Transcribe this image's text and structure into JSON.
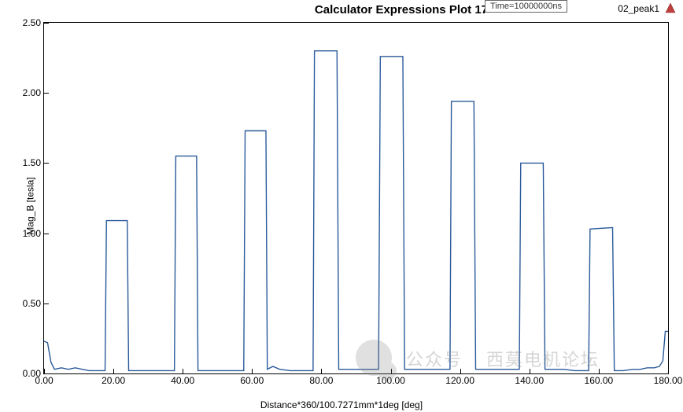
{
  "title": "Calculator Expressions Plot 17",
  "time_box": "Time=10000000ns",
  "legend": {
    "label": "02_peak1",
    "marker_color": "#c04040"
  },
  "ylabel": "Mag_B [tesla]",
  "xlabel": "Distance*360/100.7271mm*1deg [deg]",
  "chart": {
    "type": "line",
    "line_color": "#2a5a9a",
    "line_width": 1.4,
    "background_color": "#ffffff",
    "xlim": [
      0,
      180
    ],
    "ylim": [
      0,
      2.5
    ],
    "xticks": [
      0,
      20,
      40,
      60,
      80,
      100,
      120,
      140,
      160,
      180
    ],
    "xtick_labels": [
      "0.00",
      "20.00",
      "40.00",
      "60.00",
      "80.00",
      "100.00",
      "120.00",
      "140.00",
      "160.00",
      "180.00"
    ],
    "yticks": [
      0,
      0.5,
      1.0,
      1.5,
      2.0,
      2.5
    ],
    "ytick_labels": [
      "0.00",
      "0.50",
      "1.00",
      "1.50",
      "2.00",
      "2.50"
    ],
    "series": [
      {
        "x": 0.0,
        "y": 0.23
      },
      {
        "x": 1.0,
        "y": 0.22
      },
      {
        "x": 2.0,
        "y": 0.08
      },
      {
        "x": 3.0,
        "y": 0.03
      },
      {
        "x": 5.0,
        "y": 0.04
      },
      {
        "x": 7.0,
        "y": 0.03
      },
      {
        "x": 9.0,
        "y": 0.04
      },
      {
        "x": 11.0,
        "y": 0.03
      },
      {
        "x": 13.0,
        "y": 0.02
      },
      {
        "x": 15.0,
        "y": 0.02
      },
      {
        "x": 17.0,
        "y": 0.02
      },
      {
        "x": 17.6,
        "y": 0.02
      },
      {
        "x": 18.0,
        "y": 1.09
      },
      {
        "x": 24.0,
        "y": 1.09
      },
      {
        "x": 24.4,
        "y": 0.02
      },
      {
        "x": 27.0,
        "y": 0.02
      },
      {
        "x": 30.0,
        "y": 0.02
      },
      {
        "x": 33.0,
        "y": 0.02
      },
      {
        "x": 36.0,
        "y": 0.02
      },
      {
        "x": 37.6,
        "y": 0.02
      },
      {
        "x": 38.0,
        "y": 1.55
      },
      {
        "x": 44.0,
        "y": 1.55
      },
      {
        "x": 44.4,
        "y": 0.02
      },
      {
        "x": 47.0,
        "y": 0.02
      },
      {
        "x": 50.0,
        "y": 0.02
      },
      {
        "x": 53.0,
        "y": 0.02
      },
      {
        "x": 56.0,
        "y": 0.02
      },
      {
        "x": 57.6,
        "y": 0.02
      },
      {
        "x": 58.0,
        "y": 1.73
      },
      {
        "x": 64.0,
        "y": 1.73
      },
      {
        "x": 64.4,
        "y": 0.03
      },
      {
        "x": 66.0,
        "y": 0.05
      },
      {
        "x": 68.0,
        "y": 0.03
      },
      {
        "x": 71.0,
        "y": 0.02
      },
      {
        "x": 74.0,
        "y": 0.02
      },
      {
        "x": 77.0,
        "y": 0.02
      },
      {
        "x": 77.6,
        "y": 0.02
      },
      {
        "x": 78.0,
        "y": 2.3
      },
      {
        "x": 84.5,
        "y": 2.3
      },
      {
        "x": 85.0,
        "y": 0.03
      },
      {
        "x": 88.0,
        "y": 0.03
      },
      {
        "x": 91.0,
        "y": 0.03
      },
      {
        "x": 94.0,
        "y": 0.03
      },
      {
        "x": 96.5,
        "y": 0.03
      },
      {
        "x": 97.0,
        "y": 2.26
      },
      {
        "x": 103.5,
        "y": 2.26
      },
      {
        "x": 104.0,
        "y": 0.03
      },
      {
        "x": 107.0,
        "y": 0.03
      },
      {
        "x": 110.0,
        "y": 0.03
      },
      {
        "x": 113.0,
        "y": 0.03
      },
      {
        "x": 116.0,
        "y": 0.03
      },
      {
        "x": 117.1,
        "y": 0.03
      },
      {
        "x": 117.5,
        "y": 1.94
      },
      {
        "x": 124.0,
        "y": 1.94
      },
      {
        "x": 124.5,
        "y": 0.03
      },
      {
        "x": 127.0,
        "y": 0.03
      },
      {
        "x": 130.0,
        "y": 0.03
      },
      {
        "x": 133.0,
        "y": 0.03
      },
      {
        "x": 136.0,
        "y": 0.03
      },
      {
        "x": 137.1,
        "y": 0.03
      },
      {
        "x": 137.5,
        "y": 1.5
      },
      {
        "x": 144.0,
        "y": 1.5
      },
      {
        "x": 144.5,
        "y": 0.03
      },
      {
        "x": 147.0,
        "y": 0.03
      },
      {
        "x": 150.0,
        "y": 0.03
      },
      {
        "x": 153.0,
        "y": 0.02
      },
      {
        "x": 156.0,
        "y": 0.02
      },
      {
        "x": 157.1,
        "y": 0.02
      },
      {
        "x": 157.5,
        "y": 1.03
      },
      {
        "x": 164.0,
        "y": 1.04
      },
      {
        "x": 164.5,
        "y": 0.02
      },
      {
        "x": 167.0,
        "y": 0.02
      },
      {
        "x": 170.0,
        "y": 0.03
      },
      {
        "x": 172.0,
        "y": 0.03
      },
      {
        "x": 174.0,
        "y": 0.04
      },
      {
        "x": 176.0,
        "y": 0.04
      },
      {
        "x": 177.5,
        "y": 0.05
      },
      {
        "x": 178.5,
        "y": 0.09
      },
      {
        "x": 179.2,
        "y": 0.3
      },
      {
        "x": 180.0,
        "y": 0.3
      }
    ]
  },
  "watermark": {
    "text1": "公众号",
    "text2": "西莫电机论坛"
  }
}
